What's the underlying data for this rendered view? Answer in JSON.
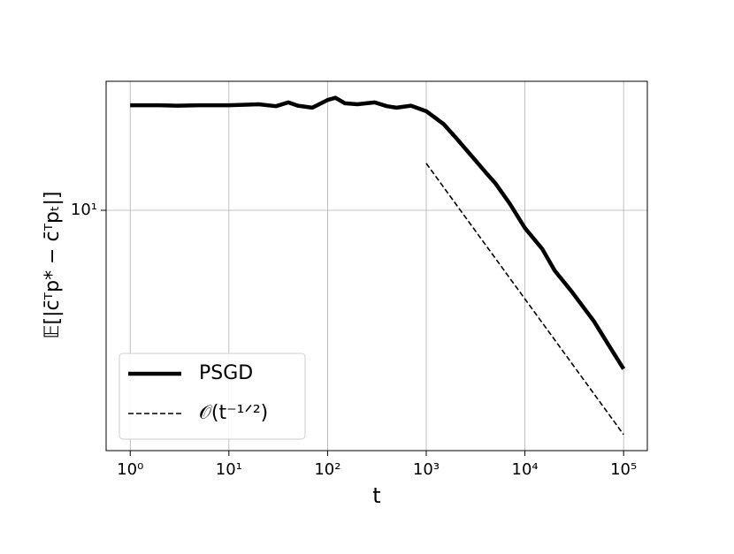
{
  "chart_data": {
    "type": "line",
    "x_label": "t",
    "y_label": "𝔼[|c̄ᵀp* − c̄ᵀpₜ|]",
    "xscale": "log",
    "yscale": "log",
    "grid": true,
    "legend_position": "lower left",
    "xlim": [
      0.57,
      174000
    ],
    "ylim": [
      1.3,
      29.9
    ],
    "xticks": [
      {
        "value": 1,
        "label": "10⁰"
      },
      {
        "value": 10,
        "label": "10¹"
      },
      {
        "value": 100,
        "label": "10²"
      },
      {
        "value": 1000,
        "label": "10³"
      },
      {
        "value": 10000,
        "label": "10⁴"
      },
      {
        "value": 100000,
        "label": "10⁵"
      }
    ],
    "yticks": [
      {
        "value": 10,
        "label": "10¹"
      }
    ],
    "series": [
      {
        "name": "PSGD",
        "color": "#000000",
        "style": "solid",
        "x": [
          1,
          2,
          3,
          5,
          7,
          10,
          15,
          20,
          30,
          40,
          50,
          70,
          100,
          120,
          150,
          200,
          300,
          400,
          500,
          700,
          1000,
          1500,
          2000,
          3000,
          4000,
          5000,
          7000,
          10000,
          15000,
          20000,
          30000,
          50000,
          70000,
          100000
        ],
        "values": [
          24.4,
          24.4,
          24.3,
          24.4,
          24.4,
          24.4,
          24.5,
          24.6,
          24.2,
          25.0,
          24.3,
          23.9,
          25.5,
          26.0,
          24.8,
          24.6,
          25.0,
          24.2,
          23.9,
          24.3,
          23.2,
          20.8,
          18.5,
          15.6,
          13.8,
          12.6,
          10.6,
          8.6,
          7.2,
          6.0,
          5.0,
          3.9,
          3.2,
          2.6
        ]
      },
      {
        "name": "𝒪(t⁻¹ᐟ²)",
        "color": "#000000",
        "style": "dashed",
        "x": [
          1000,
          100000
        ],
        "values": [
          14.9,
          1.49
        ]
      }
    ]
  }
}
